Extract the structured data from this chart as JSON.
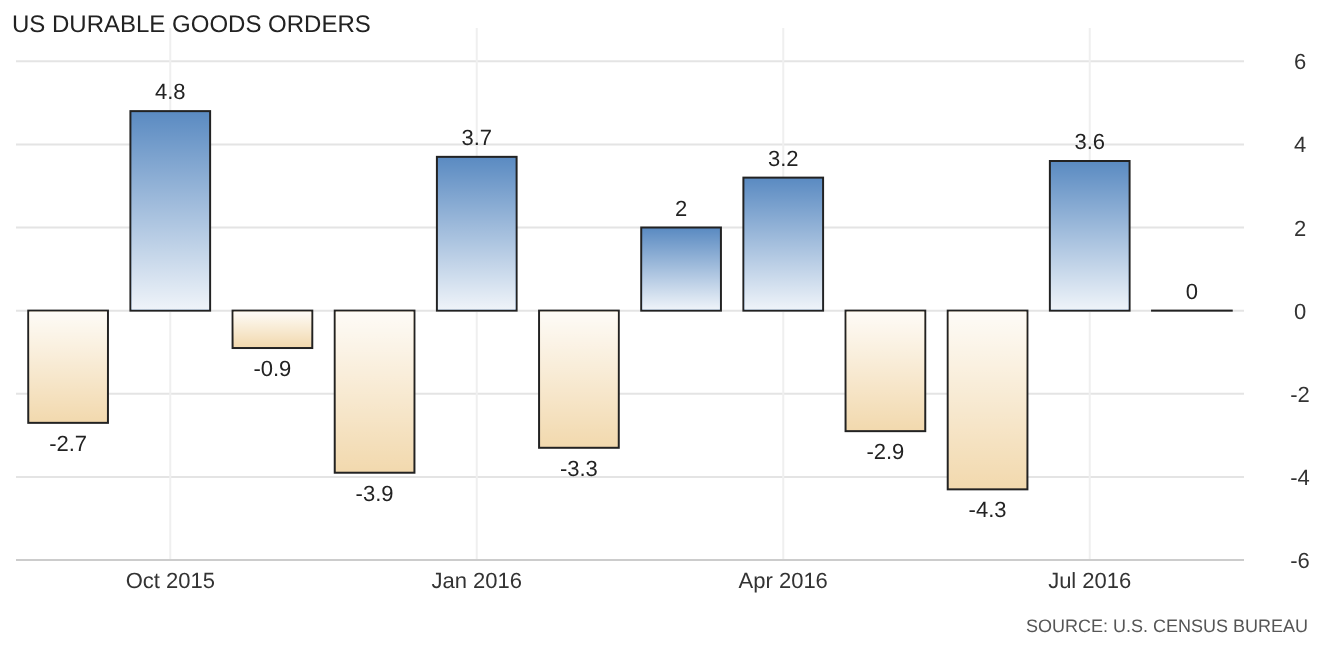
{
  "chart_data": {
    "type": "bar",
    "title": "US DURABLE GOODS ORDERS",
    "categories": [
      null,
      "Oct 2015",
      null,
      null,
      "Jan 2016",
      null,
      null,
      "Apr 2016",
      null,
      null,
      "Jul 2016",
      null
    ],
    "values": [
      -2.7,
      4.8,
      -0.9,
      -3.9,
      3.7,
      -3.3,
      2,
      3.2,
      -2.9,
      -4.3,
      3.6,
      0
    ],
    "colors": [
      "#f2d9ae",
      "#5b8bc2",
      "#f2d9ae",
      "#f2d9ae",
      "#5b8bc2",
      "#f2d9ae",
      "#5b8bc2",
      "#5b8bc2",
      "#f2d9ae",
      "#f2d9ae",
      "#5b8bc2",
      "#5b8bc2"
    ],
    "ylim": [
      -6,
      6.8
    ],
    "yticks": [
      -6,
      -4,
      -2,
      0,
      2,
      4,
      6
    ],
    "grid": true,
    "data_labels": true,
    "annotations": [
      "SOURCE: U.S. CENSUS BUREAU"
    ]
  }
}
